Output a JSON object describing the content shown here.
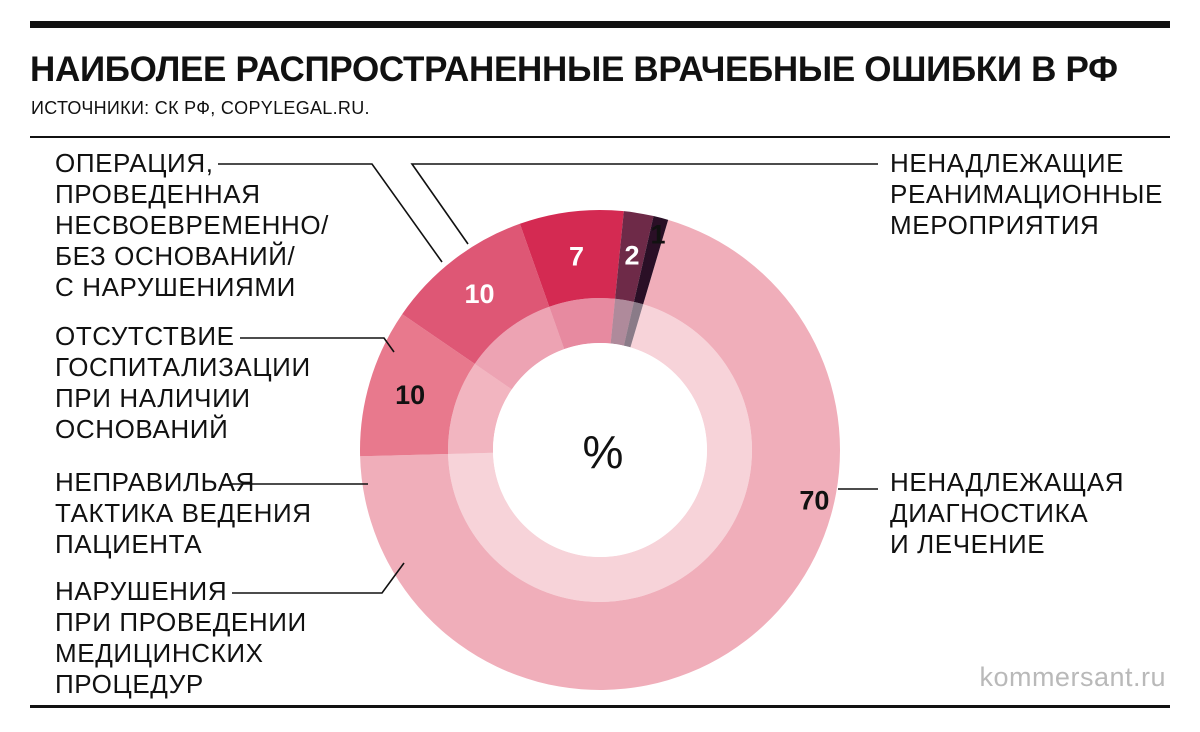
{
  "header": {
    "title": "НАИБОЛЕЕ РАСПРОСТРАНЕННЫЕ ВРАЧЕБНЫЕ ОШИБКИ В РФ",
    "source": "ИСТОЧНИКИ: СК РФ, COPYLEGAL.RU."
  },
  "watermark": "kommersant.ru",
  "chart_data": {
    "type": "pie",
    "subtype": "donut",
    "title": "НАИБОЛЕЕ РАСПРОСТРАНЕННЫЕ ВРАЧЕБНЫЕ ОШИБКИ В РФ",
    "center_label": "%",
    "grid": false,
    "categories": [
      "НЕНАДЛЕЖАЩАЯ ДИАГНОСТИКА И ЛЕЧЕНИЕ",
      "НАРУШЕНИЯ ПРИ ПРОВЕДЕНИИ МЕДИЦИНСКИХ ПРОЦЕДУР",
      "НЕПРАВИЛЬАЯ ТАКТИКА ВЕДЕНИЯ ПАЦИЕНТА",
      "ОТСУТСТВИЕ ГОСПИТАЛИЗАЦИИ ПРИ НАЛИЧИИ ОСНОВАНИЙ",
      "ОПЕРАЦИЯ, ПРОВЕДЕННАЯ НЕСВОЕВРЕМЕННО/ БЕЗ ОСНОВАНИЙ/ С НАРУШЕНИЯМИ",
      "НЕНАДЛЕЖАЩИЕ РЕАНИМАЦИОННЫЕ МЕРОПРИЯТИЯ"
    ],
    "values": [
      70,
      10,
      10,
      7,
      2,
      1
    ],
    "value_labels": [
      "70",
      "10",
      "10",
      "7",
      "2",
      "1"
    ],
    "colors": [
      "#f0aeba",
      "#e8798d",
      "#de5775",
      "#d42a52",
      "#6e2a48",
      "#2a0f26"
    ],
    "value_label_colors": [
      "#111111",
      "#111111",
      "#ffffff",
      "#ffffff",
      "#ffffff",
      "#111111"
    ],
    "label_lines": [
      [
        "НЕНАДЛЕЖАЩАЯ",
        "ДИАГНОСТИКА",
        "И ЛЕЧЕНИЕ"
      ],
      [
        "НАРУШЕНИЯ",
        "ПРИ ПРОВЕДЕНИИ",
        "МЕДИЦИНСКИХ",
        "ПРОЦЕДУР"
      ],
      [
        "НЕПРАВИЛЬАЯ",
        "ТАКТИКА ВЕДЕНИЯ",
        "ПАЦИЕНТА"
      ],
      [
        "ОТСУТСТВИЕ",
        "ГОСПИТАЛИЗАЦИИ",
        "ПРИ НАЛИЧИИ",
        "ОСНОВАНИЙ"
      ],
      [
        "ОПЕРАЦИЯ,",
        "ПРОВЕДЕННАЯ",
        "НЕСВОЕВРЕМЕННО/",
        "БЕЗ ОСНОВАНИЙ/",
        "С НАРУШЕНИЯМИ"
      ],
      [
        "НЕНАДЛЕЖАЩИЕ",
        "РЕАНИМАЦИОННЫЕ",
        "МЕРОПРИЯТИЯ"
      ]
    ]
  }
}
